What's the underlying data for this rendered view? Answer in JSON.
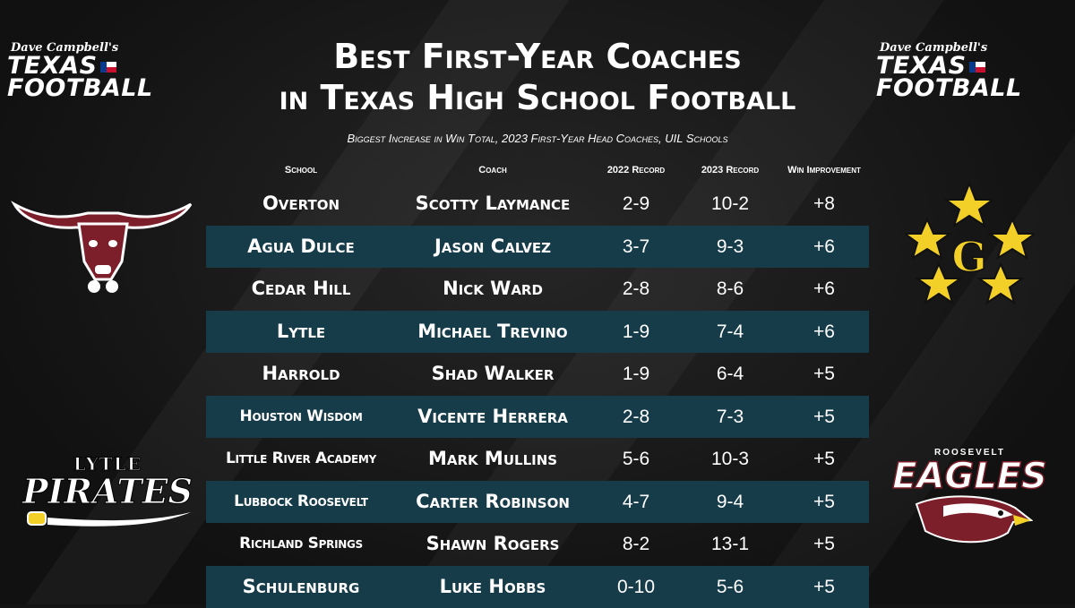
{
  "brand": {
    "small": "Dave Campbell's",
    "line1": "TEXAS",
    "line2": "FOOTBALL"
  },
  "title_line1": "Best First-Year Coaches",
  "title_line2": "in Texas High School Football",
  "subtitle": "Biggest Increase in Win Total, 2023 First-Year Head Coaches, UIL Schools",
  "columns": [
    "School",
    "Coach",
    "2022 Record",
    "2023 Record",
    "Win Improvement"
  ],
  "rows": [
    {
      "school": "Overton",
      "coach": "Scotty Laymance",
      "r2022": "2-9",
      "r2023": "10-2",
      "imp": "+8"
    },
    {
      "school": "Agua Dulce",
      "coach": "Jason Calvez",
      "r2022": "3-7",
      "r2023": "9-3",
      "imp": "+6"
    },
    {
      "school": "Cedar Hill",
      "coach": "Nick Ward",
      "r2022": "2-8",
      "r2023": "8-6",
      "imp": "+6"
    },
    {
      "school": "Lytle",
      "coach": "Michael Trevino",
      "r2022": "1-9",
      "r2023": "7-4",
      "imp": "+6"
    },
    {
      "school": "Harrold",
      "coach": "Shad Walker",
      "r2022": "1-9",
      "r2023": "6-4",
      "imp": "+5"
    },
    {
      "school": "Houston Wisdom",
      "coach": "Vicente Herrera",
      "r2022": "2-8",
      "r2023": "7-3",
      "imp": "+5"
    },
    {
      "school": "Little River Academy",
      "coach": "Mark Mullins",
      "r2022": "5-6",
      "r2023": "10-3",
      "imp": "+5"
    },
    {
      "school": "Lubbock Roosevelt",
      "coach": "Carter Robinson",
      "r2022": "4-7",
      "r2023": "9-4",
      "imp": "+5"
    },
    {
      "school": "Richland Springs",
      "coach": "Shawn Rogers",
      "r2022": "8-2",
      "r2023": "13-1",
      "imp": "+5"
    },
    {
      "school": "Schulenburg",
      "coach": "Luke Hobbs",
      "r2022": "0-10",
      "r2023": "5-6",
      "imp": "+5"
    }
  ],
  "logos": {
    "overton": {
      "icon": "longhorn-icon"
    },
    "cedar_hill": {
      "icon": "star-g-icon",
      "letter": "G"
    },
    "lytle": {
      "icon": "pirates-wordmark",
      "line1": "LYTLE",
      "line2": "PIRATES"
    },
    "roosevelt": {
      "icon": "eagle-icon",
      "line1": "ROOSEVELT",
      "line2": "EAGLES"
    }
  },
  "colors": {
    "row_alt": "#163b49",
    "background": "#141414",
    "gold": "#f2d028",
    "maroon": "#7d1f2b"
  }
}
